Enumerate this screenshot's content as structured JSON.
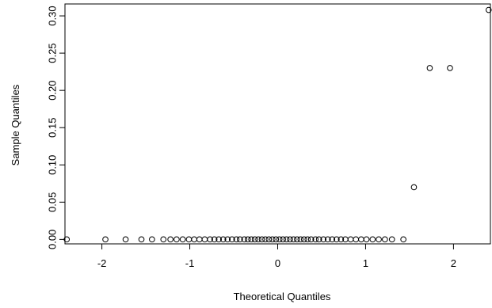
{
  "chart_data": {
    "type": "scatter",
    "title": "",
    "xlabel": "Theoretical Quantiles",
    "ylabel": "Sample Quantiles",
    "xlim": [
      -2.42,
      2.42
    ],
    "ylim": [
      -0.006,
      0.316
    ],
    "xticks": [
      -2,
      -1,
      0,
      1,
      2
    ],
    "xtick_labels": [
      "-2",
      "-1",
      "0",
      "1",
      "2"
    ],
    "yticks": [
      0.0,
      0.05,
      0.1,
      0.15,
      0.2,
      0.25,
      0.3
    ],
    "ytick_labels": [
      "0.00",
      "0.05",
      "0.10",
      "0.15",
      "0.20",
      "0.25",
      "0.30"
    ],
    "grid": false,
    "marker": "open-circle",
    "points": [
      {
        "x": -2.4,
        "y": 0.0
      },
      {
        "x": -1.96,
        "y": 0.0
      },
      {
        "x": -1.73,
        "y": 0.0
      },
      {
        "x": -1.55,
        "y": 0.0
      },
      {
        "x": -1.43,
        "y": 0.0
      },
      {
        "x": -1.3,
        "y": 0.0
      },
      {
        "x": -1.22,
        "y": 0.0
      },
      {
        "x": -1.15,
        "y": 0.0
      },
      {
        "x": -1.08,
        "y": 0.0
      },
      {
        "x": -1.01,
        "y": 0.0
      },
      {
        "x": -0.95,
        "y": 0.0
      },
      {
        "x": -0.89,
        "y": 0.0
      },
      {
        "x": -0.83,
        "y": 0.0
      },
      {
        "x": -0.77,
        "y": 0.0
      },
      {
        "x": -0.72,
        "y": 0.0
      },
      {
        "x": -0.67,
        "y": 0.0
      },
      {
        "x": -0.62,
        "y": 0.0
      },
      {
        "x": -0.57,
        "y": 0.0
      },
      {
        "x": -0.52,
        "y": 0.0
      },
      {
        "x": -0.47,
        "y": 0.0
      },
      {
        "x": -0.43,
        "y": 0.0
      },
      {
        "x": -0.38,
        "y": 0.0
      },
      {
        "x": -0.34,
        "y": 0.0
      },
      {
        "x": -0.3,
        "y": 0.0
      },
      {
        "x": -0.26,
        "y": 0.0
      },
      {
        "x": -0.22,
        "y": 0.0
      },
      {
        "x": -0.18,
        "y": 0.0
      },
      {
        "x": -0.14,
        "y": 0.0
      },
      {
        "x": -0.1,
        "y": 0.0
      },
      {
        "x": -0.06,
        "y": 0.0
      },
      {
        "x": -0.02,
        "y": 0.0
      },
      {
        "x": 0.02,
        "y": 0.0
      },
      {
        "x": 0.06,
        "y": 0.0
      },
      {
        "x": 0.1,
        "y": 0.0
      },
      {
        "x": 0.14,
        "y": 0.0
      },
      {
        "x": 0.18,
        "y": 0.0
      },
      {
        "x": 0.22,
        "y": 0.0
      },
      {
        "x": 0.26,
        "y": 0.0
      },
      {
        "x": 0.3,
        "y": 0.0
      },
      {
        "x": 0.34,
        "y": 0.0
      },
      {
        "x": 0.38,
        "y": 0.0
      },
      {
        "x": 0.43,
        "y": 0.0
      },
      {
        "x": 0.47,
        "y": 0.0
      },
      {
        "x": 0.52,
        "y": 0.0
      },
      {
        "x": 0.57,
        "y": 0.0
      },
      {
        "x": 0.62,
        "y": 0.0
      },
      {
        "x": 0.67,
        "y": 0.0
      },
      {
        "x": 0.72,
        "y": 0.0
      },
      {
        "x": 0.77,
        "y": 0.0
      },
      {
        "x": 0.83,
        "y": 0.0
      },
      {
        "x": 0.89,
        "y": 0.0
      },
      {
        "x": 0.95,
        "y": 0.0
      },
      {
        "x": 1.01,
        "y": 0.0
      },
      {
        "x": 1.08,
        "y": 0.0
      },
      {
        "x": 1.15,
        "y": 0.0
      },
      {
        "x": 1.22,
        "y": 0.0
      },
      {
        "x": 1.3,
        "y": 0.0
      },
      {
        "x": 1.43,
        "y": 0.0
      },
      {
        "x": 1.55,
        "y": 0.07
      },
      {
        "x": 1.73,
        "y": 0.23
      },
      {
        "x": 1.96,
        "y": 0.23
      },
      {
        "x": 2.4,
        "y": 0.308
      }
    ]
  }
}
